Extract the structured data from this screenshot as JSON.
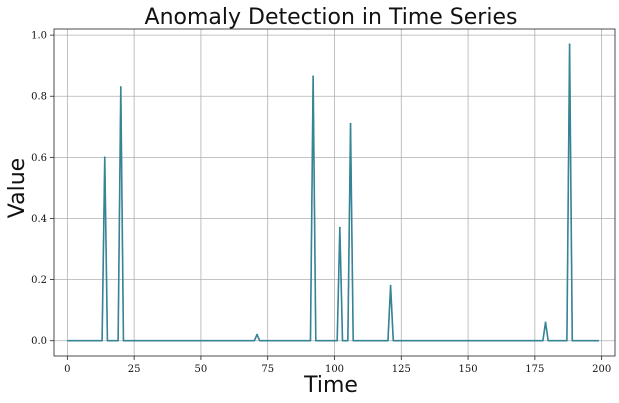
{
  "chart_data": {
    "type": "line",
    "title": "Anomaly Detection in Time Series",
    "xlabel": "Time",
    "ylabel": "Value",
    "xlim": [
      -5,
      205
    ],
    "ylim": [
      -0.05,
      1.02
    ],
    "grid": true,
    "x_ticks": [
      0,
      25,
      50,
      75,
      100,
      125,
      150,
      175,
      200
    ],
    "y_ticks": [
      0.0,
      0.2,
      0.4,
      0.6,
      0.8,
      1.0
    ],
    "x_tick_labels": [
      "0",
      "25",
      "50",
      "75",
      "100",
      "125",
      "150",
      "175",
      "200"
    ],
    "y_tick_labels": [
      "0.0",
      "0.2",
      "0.4",
      "0.6",
      "0.8",
      "1.0"
    ],
    "colors": {
      "line_overlay": "#4c72b0",
      "line_main": "#2e8b8b"
    },
    "series": [
      {
        "points": [
          [
            0,
            0
          ],
          [
            13,
            0
          ],
          [
            14,
            0.6
          ],
          [
            15,
            0
          ],
          [
            19,
            0
          ],
          [
            20,
            0.83
          ],
          [
            21,
            0
          ],
          [
            70,
            0
          ],
          [
            71,
            0.02
          ],
          [
            72,
            0
          ],
          [
            91,
            0
          ],
          [
            92,
            0.865
          ],
          [
            93,
            0
          ],
          [
            101,
            0
          ],
          [
            102,
            0.37
          ],
          [
            103,
            0
          ],
          [
            105,
            0
          ],
          [
            106,
            0.71
          ],
          [
            107,
            0
          ],
          [
            120,
            0
          ],
          [
            121,
            0.18
          ],
          [
            122,
            0
          ],
          [
            178,
            0
          ],
          [
            179,
            0.06
          ],
          [
            180,
            0
          ],
          [
            187,
            0
          ],
          [
            188,
            0.97
          ],
          [
            189,
            0
          ],
          [
            199,
            0
          ]
        ]
      }
    ]
  }
}
